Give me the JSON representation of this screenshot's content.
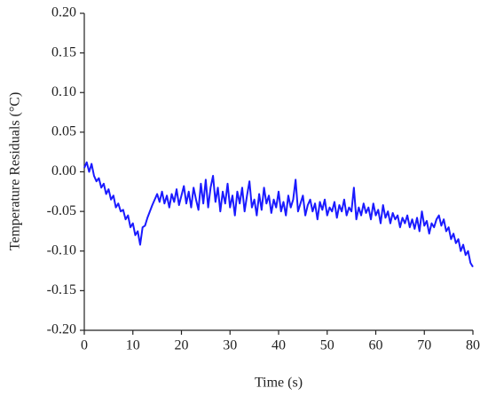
{
  "chart_data": {
    "type": "line",
    "xlabel": "Time (s)",
    "ylabel": "Temperature Residuals (°C)",
    "xlim": [
      0,
      80
    ],
    "xticks": [
      0,
      10,
      20,
      30,
      40,
      50,
      60,
      70,
      80
    ],
    "ylim": [
      -0.2,
      0.2
    ],
    "yticks": [
      {
        "value": -0.2,
        "label": "-0.20"
      },
      {
        "value": -0.15,
        "label": "-0.15"
      },
      {
        "value": -0.1,
        "label": "-0.10"
      },
      {
        "value": -0.05,
        "label": "-0.05"
      },
      {
        "value": 0,
        "label": "0.00"
      },
      {
        "value": 0.05,
        "label": "0.05"
      },
      {
        "value": 0.1,
        "label": "0.10"
      },
      {
        "value": 0.15,
        "label": "0.15"
      },
      {
        "value": 0.2,
        "label": "0.20"
      }
    ],
    "x": [
      0,
      0.5,
      1,
      1.5,
      2,
      2.5,
      3,
      3.5,
      4,
      4.5,
      5,
      5.5,
      6,
      6.5,
      7,
      7.5,
      8,
      8.5,
      9,
      9.5,
      10,
      10.5,
      11,
      11.5,
      12,
      12.5,
      13,
      13.5,
      14,
      14.5,
      15,
      15.5,
      16,
      16.5,
      17,
      17.5,
      18,
      18.5,
      19,
      19.5,
      20,
      20.5,
      21,
      21.5,
      22,
      22.5,
      23,
      23.5,
      24,
      24.5,
      25,
      25.5,
      26,
      26.5,
      27,
      27.5,
      28,
      28.5,
      29,
      29.5,
      30,
      30.5,
      31,
      31.5,
      32,
      32.5,
      33,
      33.5,
      34,
      34.5,
      35,
      35.5,
      36,
      36.5,
      37,
      37.5,
      38,
      38.5,
      39,
      39.5,
      40,
      40.5,
      41,
      41.5,
      42,
      42.5,
      43,
      43.5,
      44,
      44.5,
      45,
      45.5,
      46,
      46.5,
      47,
      47.5,
      48,
      48.5,
      49,
      49.5,
      50,
      50.5,
      51,
      51.5,
      52,
      52.5,
      53,
      53.5,
      54,
      54.5,
      55,
      55.5,
      56,
      56.5,
      57,
      57.5,
      58,
      58.5,
      59,
      59.5,
      60,
      60.5,
      61,
      61.5,
      62,
      62.5,
      63,
      63.5,
      64,
      64.5,
      65,
      65.5,
      66,
      66.5,
      67,
      67.5,
      68,
      68.5,
      69,
      69.5,
      70,
      70.5,
      71,
      71.5,
      72,
      72.5,
      73,
      73.5,
      74,
      74.5,
      75,
      75.5,
      76,
      76.5,
      77,
      77.5,
      78,
      78.5,
      79,
      79.5,
      80
    ],
    "series": [
      {
        "color": "#1a1aff",
        "values": [
          0.005,
          0.012,
          0,
          0.01,
          -0.005,
          -0.012,
          -0.008,
          -0.02,
          -0.015,
          -0.028,
          -0.022,
          -0.035,
          -0.03,
          -0.045,
          -0.04,
          -0.05,
          -0.048,
          -0.06,
          -0.055,
          -0.07,
          -0.065,
          -0.08,
          -0.075,
          -0.092,
          -0.07,
          -0.068,
          -0.058,
          -0.05,
          -0.042,
          -0.035,
          -0.028,
          -0.038,
          -0.025,
          -0.04,
          -0.03,
          -0.045,
          -0.028,
          -0.038,
          -0.022,
          -0.042,
          -0.03,
          -0.018,
          -0.04,
          -0.025,
          -0.045,
          -0.02,
          -0.035,
          -0.048,
          -0.015,
          -0.04,
          -0.01,
          -0.045,
          -0.02,
          -0.005,
          -0.038,
          -0.02,
          -0.05,
          -0.025,
          -0.04,
          -0.015,
          -0.045,
          -0.03,
          -0.055,
          -0.025,
          -0.04,
          -0.02,
          -0.05,
          -0.03,
          -0.012,
          -0.045,
          -0.035,
          -0.055,
          -0.028,
          -0.048,
          -0.02,
          -0.04,
          -0.03,
          -0.052,
          -0.035,
          -0.045,
          -0.025,
          -0.05,
          -0.038,
          -0.055,
          -0.03,
          -0.045,
          -0.035,
          -0.01,
          -0.05,
          -0.04,
          -0.03,
          -0.055,
          -0.042,
          -0.035,
          -0.05,
          -0.04,
          -0.06,
          -0.038,
          -0.048,
          -0.035,
          -0.055,
          -0.045,
          -0.05,
          -0.038,
          -0.058,
          -0.042,
          -0.05,
          -0.035,
          -0.055,
          -0.045,
          -0.05,
          -0.02,
          -0.06,
          -0.045,
          -0.055,
          -0.04,
          -0.052,
          -0.045,
          -0.06,
          -0.04,
          -0.055,
          -0.048,
          -0.065,
          -0.042,
          -0.058,
          -0.05,
          -0.065,
          -0.052,
          -0.06,
          -0.055,
          -0.07,
          -0.058,
          -0.065,
          -0.055,
          -0.07,
          -0.06,
          -0.072,
          -0.058,
          -0.075,
          -0.05,
          -0.068,
          -0.062,
          -0.078,
          -0.065,
          -0.07,
          -0.06,
          -0.055,
          -0.068,
          -0.06,
          -0.075,
          -0.07,
          -0.085,
          -0.078,
          -0.09,
          -0.085,
          -0.1,
          -0.092,
          -0.105,
          -0.1,
          -0.115,
          -0.12
        ]
      }
    ]
  }
}
